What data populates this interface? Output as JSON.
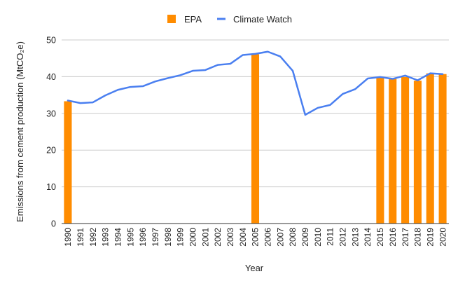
{
  "chart_data": {
    "type": "bar",
    "xlabel": "Year",
    "ylabel": "Emissions from cement production (MtCO₂e)",
    "ylim": [
      0,
      50
    ],
    "yticks": [
      0,
      10,
      20,
      30,
      40,
      50
    ],
    "grid": true,
    "legend_position": "top-center",
    "categories": [
      "1990",
      "1991",
      "1992",
      "1993",
      "1994",
      "1995",
      "1996",
      "1997",
      "1998",
      "1999",
      "2000",
      "2001",
      "2002",
      "2003",
      "2004",
      "2005",
      "2006",
      "2007",
      "2008",
      "2009",
      "2010",
      "2011",
      "2012",
      "2013",
      "2014",
      "2015",
      "2016",
      "2017",
      "2018",
      "2019",
      "2020"
    ],
    "series": [
      {
        "name": "EPA",
        "type": "bar",
        "color": "#ff8c00",
        "values": [
          33.3,
          null,
          null,
          null,
          null,
          null,
          null,
          null,
          null,
          null,
          null,
          null,
          null,
          null,
          null,
          46.1,
          null,
          null,
          null,
          null,
          null,
          null,
          null,
          null,
          null,
          39.9,
          39.4,
          39.9,
          38.9,
          40.9,
          40.7
        ]
      },
      {
        "name": "Climate Watch",
        "type": "line",
        "color": "#4a7ff0",
        "values": [
          33.5,
          32.8,
          33.0,
          34.9,
          36.4,
          37.2,
          37.4,
          38.7,
          39.6,
          40.4,
          41.6,
          41.8,
          43.2,
          43.5,
          45.9,
          46.2,
          46.8,
          45.5,
          41.6,
          29.6,
          31.5,
          32.3,
          35.3,
          36.6,
          39.5,
          39.9,
          39.4,
          40.3,
          39.0,
          40.9,
          40.7
        ]
      }
    ]
  }
}
